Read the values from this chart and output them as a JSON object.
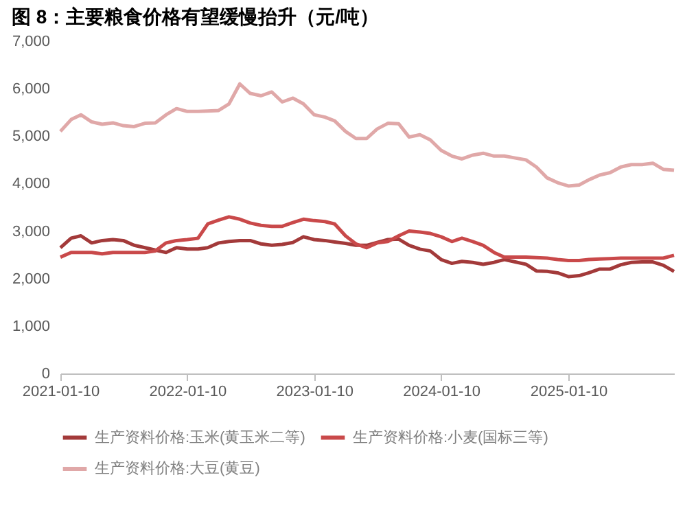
{
  "chart_data": {
    "type": "line",
    "title": "图 8：主要粮食价格有望缓慢抬升（元/吨）",
    "x": [
      "2021-01-10",
      "2021-02-10",
      "2021-03-10",
      "2021-04-10",
      "2021-05-10",
      "2021-06-10",
      "2021-07-10",
      "2021-08-10",
      "2021-09-10",
      "2021-10-10",
      "2021-11-10",
      "2021-12-10",
      "2022-01-10",
      "2022-02-10",
      "2022-03-10",
      "2022-04-10",
      "2022-05-10",
      "2022-06-10",
      "2022-07-10",
      "2022-08-10",
      "2022-09-10",
      "2022-10-10",
      "2022-11-10",
      "2022-12-10",
      "2023-01-10",
      "2023-02-10",
      "2023-03-10",
      "2023-04-10",
      "2023-05-10",
      "2023-06-10",
      "2023-07-10",
      "2023-08-10",
      "2023-09-10",
      "2023-10-10",
      "2023-11-10",
      "2023-12-10",
      "2024-01-10",
      "2024-02-10",
      "2024-03-10",
      "2024-04-10",
      "2024-05-10",
      "2024-06-10",
      "2024-07-10",
      "2024-08-10",
      "2024-09-10",
      "2024-10-10",
      "2024-11-10",
      "2024-12-10",
      "2025-01-10",
      "2025-02-10",
      "2025-03-10",
      "2025-04-10",
      "2025-05-10",
      "2025-06-10",
      "2025-07-10",
      "2025-08-10",
      "2025-09-10",
      "2025-10-10",
      "2025-11-10"
    ],
    "series": [
      {
        "name": "生产资料价格:玉米(黄玉米二等)",
        "color": "#a33a3a",
        "values": [
          2650,
          2850,
          2900,
          2750,
          2800,
          2820,
          2800,
          2700,
          2650,
          2600,
          2550,
          2650,
          2620,
          2620,
          2650,
          2750,
          2780,
          2800,
          2800,
          2730,
          2700,
          2720,
          2760,
          2880,
          2820,
          2800,
          2770,
          2740,
          2700,
          2700,
          2760,
          2820,
          2830,
          2700,
          2620,
          2580,
          2400,
          2320,
          2360,
          2340,
          2300,
          2340,
          2400,
          2350,
          2300,
          2160,
          2150,
          2120,
          2040,
          2060,
          2120,
          2200,
          2200,
          2290,
          2340,
          2350,
          2350,
          2280,
          2150
        ]
      },
      {
        "name": "生产资料价格:小麦(国标三等)",
        "color": "#c9494a",
        "values": [
          2450,
          2550,
          2550,
          2550,
          2520,
          2550,
          2550,
          2550,
          2550,
          2580,
          2750,
          2800,
          2820,
          2850,
          3150,
          3230,
          3300,
          3250,
          3170,
          3120,
          3100,
          3100,
          3180,
          3250,
          3220,
          3200,
          3150,
          2900,
          2730,
          2650,
          2750,
          2780,
          2900,
          3000,
          2980,
          2950,
          2880,
          2780,
          2850,
          2780,
          2700,
          2550,
          2450,
          2450,
          2450,
          2440,
          2430,
          2400,
          2380,
          2380,
          2400,
          2410,
          2420,
          2430,
          2430,
          2430,
          2430,
          2430,
          2490
        ]
      },
      {
        "name": "生产资料价格:大豆(黄豆)",
        "color": "#e0a8a8",
        "values": [
          5100,
          5350,
          5450,
          5300,
          5250,
          5280,
          5220,
          5200,
          5270,
          5280,
          5450,
          5580,
          5520,
          5520,
          5530,
          5540,
          5680,
          6100,
          5900,
          5850,
          5930,
          5720,
          5800,
          5680,
          5450,
          5400,
          5320,
          5100,
          4950,
          4950,
          5150,
          5270,
          5260,
          4980,
          5030,
          4920,
          4700,
          4580,
          4520,
          4600,
          4640,
          4580,
          4580,
          4540,
          4500,
          4350,
          4120,
          4020,
          3950,
          3970,
          4080,
          4180,
          4230,
          4350,
          4400,
          4400,
          4430,
          4300,
          4280
        ]
      }
    ],
    "xlim": [
      "2021-01-10",
      "2025-11-10"
    ],
    "xticks": [
      "2021-01-10",
      "2022-01-10",
      "2023-01-10",
      "2024-01-10",
      "2025-01-10"
    ],
    "ylim": [
      0,
      7000
    ],
    "yticks": [
      {
        "value": 0,
        "label": "0"
      },
      {
        "value": 1000,
        "label": "1,000"
      },
      {
        "value": 2000,
        "label": "2,000"
      },
      {
        "value": 3000,
        "label": "3,000"
      },
      {
        "value": 4000,
        "label": "4,000"
      },
      {
        "value": 5000,
        "label": "5,000"
      },
      {
        "value": 6000,
        "label": "6,000"
      },
      {
        "value": 7000,
        "label": "7,000"
      }
    ],
    "grid": false,
    "legend": "bottom"
  }
}
